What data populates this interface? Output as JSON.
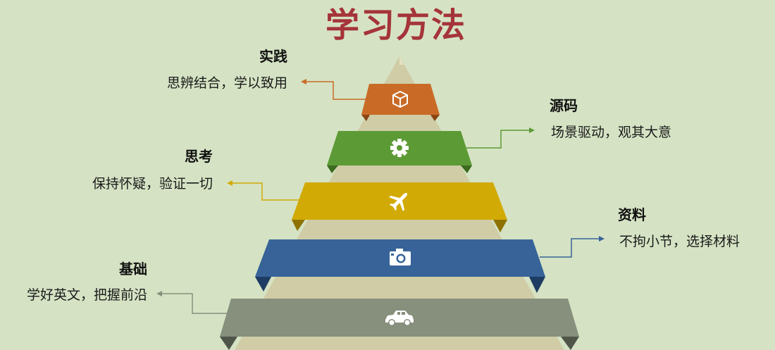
{
  "title": "学习方法",
  "levels": [
    {
      "name": "实践",
      "desc": "思辨结合，学以致用",
      "icon": "cube-icon",
      "color": "#c96b27",
      "dark": "#8a4514"
    },
    {
      "name": "源码",
      "desc": "场景驱动，观其大意",
      "icon": "gear-icon",
      "color": "#5c9a35",
      "dark": "#3c6a1f"
    },
    {
      "name": "思考",
      "desc": "保持怀疑，验证一切",
      "icon": "airplane-icon",
      "color": "#d2aa05",
      "dark": "#8e7200"
    },
    {
      "name": "资料",
      "desc": "不拘小节，选择材料",
      "icon": "camera-icon",
      "color": "#376399",
      "dark": "#1e3c63"
    },
    {
      "name": "基础",
      "desc": "学好英文，把握前沿",
      "icon": "car-icon",
      "color": "#878f7d",
      "dark": "#4f5548"
    }
  ],
  "colors": {
    "background": "#d5e3c4",
    "pyramid": "#cfcca6",
    "title": "#a5343a"
  }
}
